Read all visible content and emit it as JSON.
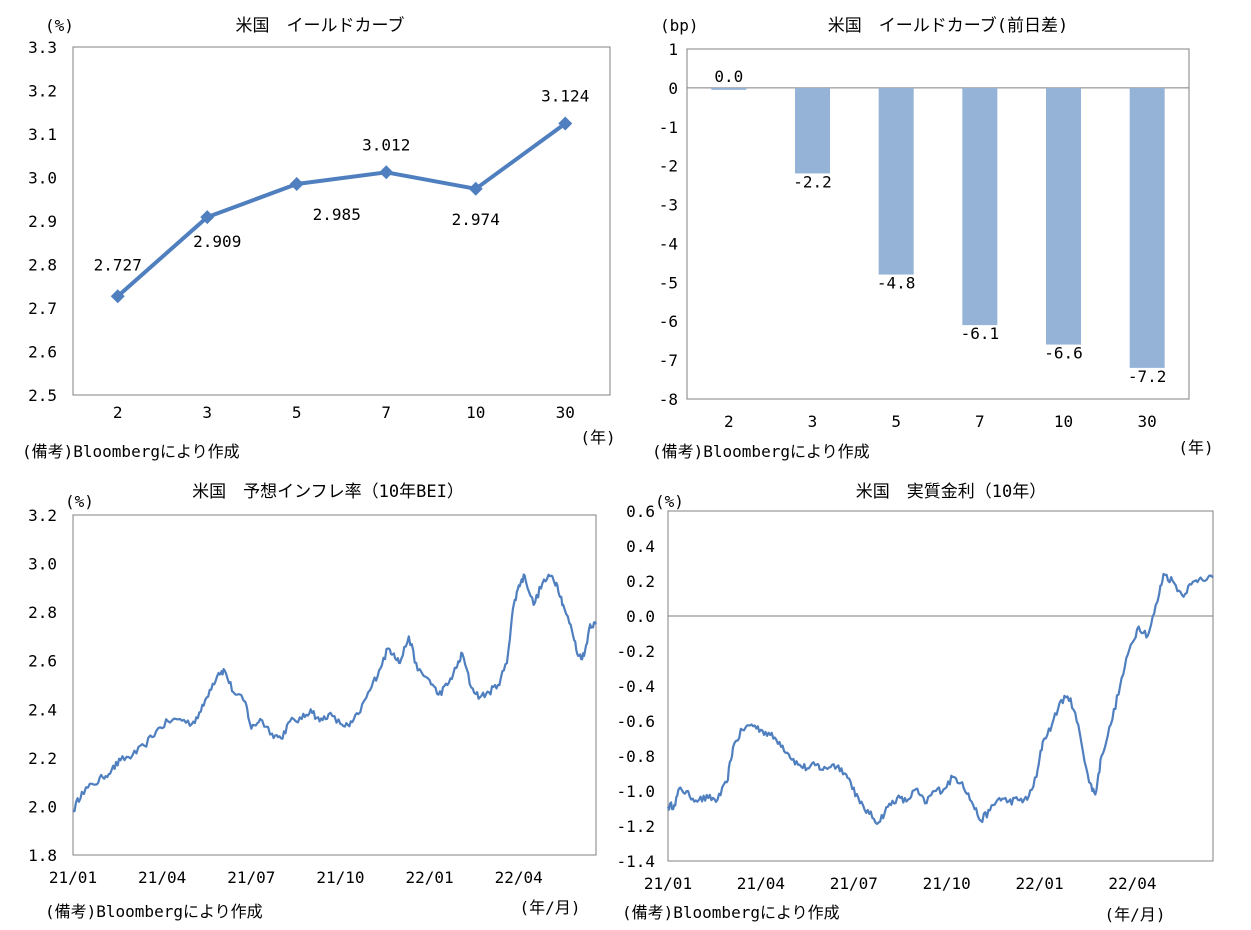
{
  "charts": {
    "yc": {
      "title": "米国　イールドカーブ",
      "unit": "(%)",
      "xunit": "(年)",
      "source": "(備考)Bloombergにより作成"
    },
    "diff": {
      "title": "米国　イールドカーブ(前日差)",
      "unit": "(bp)",
      "xunit": "(年)",
      "source": "(備考)Bloombergにより作成"
    },
    "bei": {
      "title": "米国　予想インフレ率（10年BEI）",
      "unit": "(%)",
      "xunit": "(年/月)",
      "source": "(備考)Bloombergにより作成"
    },
    "real": {
      "title": "米国　実質金利（10年）",
      "unit": "(%)",
      "xunit": "(年/月)",
      "source": "(備考)Bloombergにより作成"
    }
  },
  "colors": {
    "line": "#4f7fbf",
    "bar": "#95b3d7",
    "axis": "#808080",
    "zero": "#7f7f7f"
  },
  "chart_data": [
    {
      "id": "yc",
      "type": "line",
      "title": "米国　イールドカーブ",
      "categories": [
        "2",
        "3",
        "5",
        "7",
        "10",
        "30"
      ],
      "values": [
        2.727,
        2.909,
        2.985,
        3.012,
        2.974,
        3.124
      ],
      "data_labels": [
        "2.727",
        "2.909",
        "2.985",
        "3.012",
        "2.974",
        "3.124"
      ],
      "ylabel": "(%)",
      "xlabel": "(年)",
      "ylim": [
        2.5,
        3.3
      ],
      "yticks": [
        "2.5",
        "2.6",
        "2.7",
        "2.8",
        "2.9",
        "3.0",
        "3.1",
        "3.2",
        "3.3"
      ],
      "marker": "diamond"
    },
    {
      "id": "diff",
      "type": "bar",
      "title": "米国　イールドカーブ(前日差)",
      "categories": [
        "2",
        "3",
        "5",
        "7",
        "10",
        "30"
      ],
      "values": [
        0.0,
        -2.2,
        -4.8,
        -6.1,
        -6.6,
        -7.2
      ],
      "data_labels": [
        "0.0",
        "-2.2",
        "-4.8",
        "-6.1",
        "-6.6",
        "-7.2"
      ],
      "ylabel": "(bp)",
      "xlabel": "(年)",
      "ylim": [
        -8,
        1
      ],
      "yticks": [
        "-8",
        "-7",
        "-6",
        "-5",
        "-4",
        "-3",
        "-2",
        "-1",
        "0",
        "1"
      ]
    },
    {
      "id": "bei",
      "type": "line",
      "title": "米国　予想インフレ率（10年BEI）",
      "ylabel": "(%)",
      "xlabel": "(年/月)",
      "ylim": [
        1.8,
        3.2
      ],
      "yticks": [
        "1.8",
        "2.0",
        "2.2",
        "2.4",
        "2.6",
        "2.8",
        "3.0",
        "3.2"
      ],
      "xticks": [
        "21/01",
        "21/04",
        "21/07",
        "21/10",
        "22/01",
        "22/04"
      ],
      "months_span": 17.6,
      "anchors": [
        [
          0.0,
          1.98
        ],
        [
          0.3,
          2.06
        ],
        [
          0.7,
          2.09
        ],
        [
          1.0,
          2.12
        ],
        [
          1.3,
          2.15
        ],
        [
          1.6,
          2.19
        ],
        [
          2.0,
          2.21
        ],
        [
          2.4,
          2.25
        ],
        [
          2.8,
          2.31
        ],
        [
          3.2,
          2.35
        ],
        [
          3.6,
          2.36
        ],
        [
          4.0,
          2.34
        ],
        [
          4.3,
          2.39
        ],
        [
          4.6,
          2.48
        ],
        [
          4.9,
          2.55
        ],
        [
          5.1,
          2.56
        ],
        [
          5.4,
          2.47
        ],
        [
          5.8,
          2.43
        ],
        [
          6.0,
          2.32
        ],
        [
          6.3,
          2.36
        ],
        [
          6.7,
          2.3
        ],
        [
          7.0,
          2.28
        ],
        [
          7.3,
          2.35
        ],
        [
          7.7,
          2.36
        ],
        [
          8.0,
          2.4
        ],
        [
          8.3,
          2.35
        ],
        [
          8.6,
          2.38
        ],
        [
          9.0,
          2.34
        ],
        [
          9.3,
          2.33
        ],
        [
          9.6,
          2.38
        ],
        [
          10.0,
          2.48
        ],
        [
          10.3,
          2.56
        ],
        [
          10.6,
          2.65
        ],
        [
          10.8,
          2.63
        ],
        [
          11.0,
          2.59
        ],
        [
          11.3,
          2.7
        ],
        [
          11.6,
          2.56
        ],
        [
          12.0,
          2.52
        ],
        [
          12.3,
          2.46
        ],
        [
          12.6,
          2.5
        ],
        [
          12.9,
          2.57
        ],
        [
          13.1,
          2.63
        ],
        [
          13.4,
          2.49
        ],
        [
          13.7,
          2.45
        ],
        [
          14.0,
          2.47
        ],
        [
          14.3,
          2.5
        ],
        [
          14.6,
          2.59
        ],
        [
          14.8,
          2.81
        ],
        [
          15.0,
          2.91
        ],
        [
          15.2,
          2.95
        ],
        [
          15.5,
          2.83
        ],
        [
          15.8,
          2.92
        ],
        [
          16.1,
          2.95
        ],
        [
          16.3,
          2.91
        ],
        [
          16.5,
          2.83
        ],
        [
          16.8,
          2.72
        ],
        [
          17.0,
          2.62
        ],
        [
          17.2,
          2.62
        ],
        [
          17.4,
          2.75
        ],
        [
          17.6,
          2.75
        ]
      ]
    },
    {
      "id": "real",
      "type": "line",
      "title": "米国　実質金利（10年）",
      "ylabel": "(%)",
      "xlabel": "(年/月)",
      "ylim": [
        -1.4,
        0.6
      ],
      "yticks": [
        "-1.4",
        "-1.2",
        "-1.0",
        "-0.8",
        "-0.6",
        "-0.4",
        "-0.2",
        "0.0",
        "0.2",
        "0.4",
        "0.6"
      ],
      "xticks": [
        "21/01",
        "21/04",
        "21/07",
        "21/10",
        "22/01",
        "22/04"
      ],
      "months_span": 17.6,
      "anchors": [
        [
          0.0,
          -1.09
        ],
        [
          0.2,
          -1.08
        ],
        [
          0.4,
          -0.98
        ],
        [
          0.7,
          -1.03
        ],
        [
          1.0,
          -1.05
        ],
        [
          1.3,
          -1.04
        ],
        [
          1.6,
          -1.05
        ],
        [
          1.9,
          -0.95
        ],
        [
          2.1,
          -0.75
        ],
        [
          2.4,
          -0.65
        ],
        [
          2.7,
          -0.62
        ],
        [
          3.0,
          -0.65
        ],
        [
          3.3,
          -0.68
        ],
        [
          3.6,
          -0.72
        ],
        [
          3.9,
          -0.79
        ],
        [
          4.2,
          -0.85
        ],
        [
          4.5,
          -0.87
        ],
        [
          4.8,
          -0.85
        ],
        [
          5.0,
          -0.88
        ],
        [
          5.3,
          -0.85
        ],
        [
          5.6,
          -0.87
        ],
        [
          5.9,
          -0.95
        ],
        [
          6.2,
          -1.07
        ],
        [
          6.5,
          -1.13
        ],
        [
          6.8,
          -1.18
        ],
        [
          7.1,
          -1.09
        ],
        [
          7.4,
          -1.04
        ],
        [
          7.7,
          -1.06
        ],
        [
          8.0,
          -0.99
        ],
        [
          8.3,
          -1.07
        ],
        [
          8.6,
          -1.0
        ],
        [
          8.9,
          -0.99
        ],
        [
          9.2,
          -0.92
        ],
        [
          9.5,
          -0.95
        ],
        [
          9.8,
          -1.06
        ],
        [
          10.1,
          -1.17
        ],
        [
          10.4,
          -1.11
        ],
        [
          10.7,
          -1.04
        ],
        [
          11.0,
          -1.06
        ],
        [
          11.3,
          -1.05
        ],
        [
          11.6,
          -1.05
        ],
        [
          11.9,
          -0.92
        ],
        [
          12.1,
          -0.72
        ],
        [
          12.4,
          -0.62
        ],
        [
          12.7,
          -0.48
        ],
        [
          13.0,
          -0.47
        ],
        [
          13.3,
          -0.67
        ],
        [
          13.6,
          -0.95
        ],
        [
          13.8,
          -1.02
        ],
        [
          14.0,
          -0.8
        ],
        [
          14.3,
          -0.62
        ],
        [
          14.6,
          -0.4
        ],
        [
          14.9,
          -0.19
        ],
        [
          15.2,
          -0.06
        ],
        [
          15.5,
          -0.11
        ],
        [
          15.8,
          0.08
        ],
        [
          16.0,
          0.24
        ],
        [
          16.3,
          0.2
        ],
        [
          16.6,
          0.12
        ],
        [
          16.9,
          0.18
        ],
        [
          17.2,
          0.22
        ],
        [
          17.6,
          0.22
        ]
      ]
    }
  ]
}
